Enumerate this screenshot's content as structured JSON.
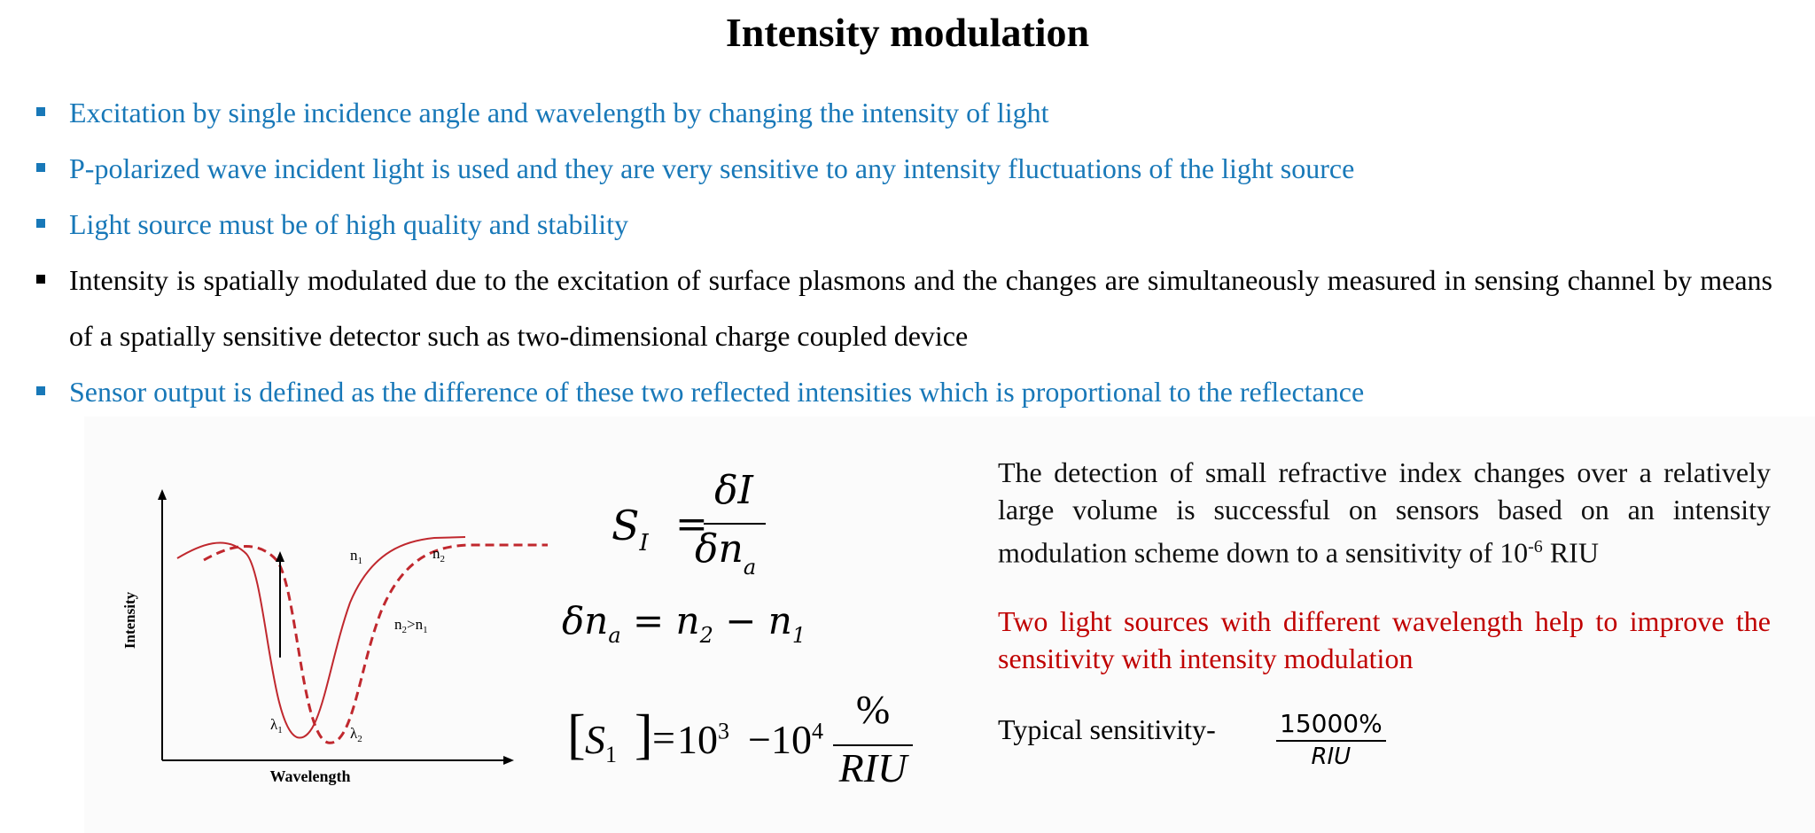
{
  "title": "Intensity modulation",
  "bullets": [
    {
      "text": "Excitation by single incidence angle and wavelength by changing the intensity of light",
      "color": "#1878b8"
    },
    {
      "text": "P-polarized wave incident light is used and they are very sensitive to any intensity fluctuations of the light source",
      "color": "#1878b8"
    },
    {
      "text": "Light source must be of high quality and stability",
      "color": "#1878b8"
    },
    {
      "text": "Intensity is spatially modulated due to the excitation of surface plasmons and the changes are simultaneously measured in sensing channel by means of a spatially sensitive detector such as two-dimensional charge coupled device",
      "color": "#000000"
    },
    {
      "text": "Sensor output is defined as the difference of these two reflected intensities which is proportional to the reflectance",
      "color": "#1878b8"
    }
  ],
  "plot": {
    "ylabel": "Intensity",
    "xlabel": "Wavelength",
    "label_n1": "n",
    "sub_n1": "1",
    "label_n2": "n",
    "sub_n2": "2",
    "label_cmp_a": "n",
    "label_cmp_a_sub": "2",
    "label_cmp_mid": ">n",
    "label_cmp_b_sub": "1",
    "label_l1": "λ",
    "sub_l1": "1",
    "label_l2": "λ",
    "sub_l2": "2",
    "curve_color": "#c0282e"
  },
  "equations": {
    "eq1_lhs": "S",
    "eq1_lhs_sub": "I",
    "eq1_num": "δI",
    "eq1_den": "δn",
    "eq1_den_sub": "a",
    "eq2": "δn",
    "eq2_sub_a": "a",
    "eq2_mid": " = n",
    "eq2_sub_2": "2",
    "eq2_minus": " − n",
    "eq2_sub_1": "1",
    "eq3_lhs": "S",
    "eq3_lhs_sub": "1",
    "eq3_mid": "10",
    "eq3_exp1": "3",
    "eq3_minus": "−10",
    "eq3_exp2": "4",
    "eq3_num": "%",
    "eq3_den": "RIU"
  },
  "right": {
    "para1": "The detection of small refractive index changes over a relatively large volume is successful on sensors based on an intensity modulation scheme down to a sensitivity of 10",
    "para1_sup": "-6",
    "para1_end": " RIU",
    "para2": "Two light sources with different wavelength help to improve the sensitivity with intensity modulation",
    "typ_label": "Typical sensitivity-",
    "typ_num": "15000%",
    "typ_den": "RIU"
  }
}
